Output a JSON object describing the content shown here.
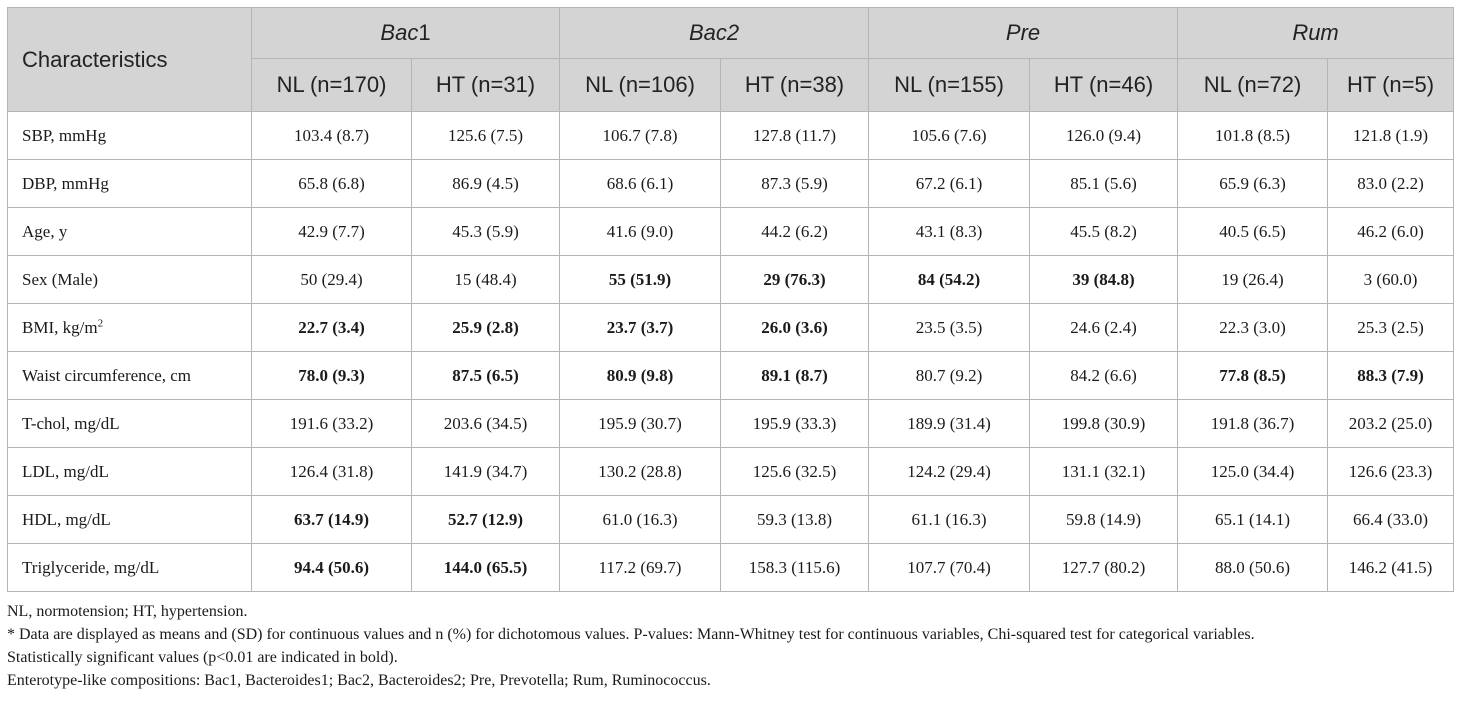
{
  "table": {
    "characteristics_header": "Characteristics",
    "groups": [
      {
        "name": "Bac",
        "suffix": "1"
      },
      {
        "name": "Bac",
        "suffix": "2"
      },
      {
        "name": "Pre",
        "suffix": ""
      },
      {
        "name": "Rum",
        "suffix": ""
      }
    ],
    "subheaders": [
      "NL (n=170)",
      "HT (n=31)",
      "NL (n=106)",
      "HT (n=38)",
      "NL (n=155)",
      "HT (n=46)",
      "NL (n=72)",
      "HT (n=5)"
    ],
    "rows": [
      {
        "label": "SBP, mmHg",
        "label_sup": "",
        "cells": [
          {
            "text": "103.4 (8.7)",
            "bold": false
          },
          {
            "text": "125.6 (7.5)",
            "bold": false
          },
          {
            "text": "106.7 (7.8)",
            "bold": false
          },
          {
            "text": "127.8 (11.7)",
            "bold": false
          },
          {
            "text": "105.6 (7.6)",
            "bold": false
          },
          {
            "text": "126.0 (9.4)",
            "bold": false
          },
          {
            "text": "101.8 (8.5)",
            "bold": false
          },
          {
            "text": "121.8 (1.9)",
            "bold": false
          }
        ]
      },
      {
        "label": "DBP, mmHg",
        "label_sup": "",
        "cells": [
          {
            "text": "65.8 (6.8)",
            "bold": false
          },
          {
            "text": "86.9 (4.5)",
            "bold": false
          },
          {
            "text": "68.6 (6.1)",
            "bold": false
          },
          {
            "text": "87.3 (5.9)",
            "bold": false
          },
          {
            "text": "67.2 (6.1)",
            "bold": false
          },
          {
            "text": "85.1 (5.6)",
            "bold": false
          },
          {
            "text": "65.9 (6.3)",
            "bold": false
          },
          {
            "text": "83.0 (2.2)",
            "bold": false
          }
        ]
      },
      {
        "label": "Age, y",
        "label_sup": "",
        "cells": [
          {
            "text": "42.9 (7.7)",
            "bold": false
          },
          {
            "text": "45.3 (5.9)",
            "bold": false
          },
          {
            "text": "41.6 (9.0)",
            "bold": false
          },
          {
            "text": "44.2 (6.2)",
            "bold": false
          },
          {
            "text": "43.1 (8.3)",
            "bold": false
          },
          {
            "text": "45.5 (8.2)",
            "bold": false
          },
          {
            "text": "40.5 (6.5)",
            "bold": false
          },
          {
            "text": "46.2 (6.0)",
            "bold": false
          }
        ]
      },
      {
        "label": "Sex (Male)",
        "label_sup": "",
        "cells": [
          {
            "text": "50 (29.4)",
            "bold": false
          },
          {
            "text": "15 (48.4)",
            "bold": false
          },
          {
            "text": "55 (51.9)",
            "bold": true
          },
          {
            "text": "29 (76.3)",
            "bold": true
          },
          {
            "text": "84 (54.2)",
            "bold": true
          },
          {
            "text": "39 (84.8)",
            "bold": true
          },
          {
            "text": "19 (26.4)",
            "bold": false
          },
          {
            "text": "3 (60.0)",
            "bold": false
          }
        ]
      },
      {
        "label": "BMI, kg/m",
        "label_sup": "2",
        "cells": [
          {
            "text": "22.7 (3.4)",
            "bold": true
          },
          {
            "text": "25.9 (2.8)",
            "bold": true
          },
          {
            "text": "23.7 (3.7)",
            "bold": true
          },
          {
            "text": "26.0 (3.6)",
            "bold": true
          },
          {
            "text": "23.5 (3.5)",
            "bold": false
          },
          {
            "text": "24.6 (2.4)",
            "bold": false
          },
          {
            "text": "22.3 (3.0)",
            "bold": false
          },
          {
            "text": "25.3 (2.5)",
            "bold": false
          }
        ]
      },
      {
        "label": "Waist circumference, cm",
        "label_sup": "",
        "cells": [
          {
            "text": "78.0 (9.3)",
            "bold": true
          },
          {
            "text": "87.5 (6.5)",
            "bold": true
          },
          {
            "text": "80.9 (9.8)",
            "bold": true
          },
          {
            "text": "89.1 (8.7)",
            "bold": true
          },
          {
            "text": "80.7 (9.2)",
            "bold": false
          },
          {
            "text": "84.2 (6.6)",
            "bold": false
          },
          {
            "text": "77.8 (8.5)",
            "bold": true
          },
          {
            "text": "88.3 (7.9)",
            "bold": true
          }
        ]
      },
      {
        "label": "T-chol, mg/dL",
        "label_sup": "",
        "cells": [
          {
            "text": "191.6 (33.2)",
            "bold": false
          },
          {
            "text": "203.6 (34.5)",
            "bold": false
          },
          {
            "text": "195.9 (30.7)",
            "bold": false
          },
          {
            "text": "195.9 (33.3)",
            "bold": false
          },
          {
            "text": "189.9 (31.4)",
            "bold": false
          },
          {
            "text": "199.8 (30.9)",
            "bold": false
          },
          {
            "text": "191.8 (36.7)",
            "bold": false
          },
          {
            "text": "203.2 (25.0)",
            "bold": false
          }
        ]
      },
      {
        "label": "LDL, mg/dL",
        "label_sup": "",
        "cells": [
          {
            "text": "126.4 (31.8)",
            "bold": false
          },
          {
            "text": "141.9 (34.7)",
            "bold": false
          },
          {
            "text": "130.2 (28.8)",
            "bold": false
          },
          {
            "text": "125.6 (32.5)",
            "bold": false
          },
          {
            "text": "124.2 (29.4)",
            "bold": false
          },
          {
            "text": "131.1 (32.1)",
            "bold": false
          },
          {
            "text": "125.0 (34.4)",
            "bold": false
          },
          {
            "text": "126.6 (23.3)",
            "bold": false
          }
        ]
      },
      {
        "label": "HDL, mg/dL",
        "label_sup": "",
        "cells": [
          {
            "text": "63.7 (14.9)",
            "bold": true
          },
          {
            "text": "52.7 (12.9)",
            "bold": true
          },
          {
            "text": "61.0 (16.3)",
            "bold": false
          },
          {
            "text": "59.3 (13.8)",
            "bold": false
          },
          {
            "text": "61.1 (16.3)",
            "bold": false
          },
          {
            "text": "59.8 (14.9)",
            "bold": false
          },
          {
            "text": "65.1 (14.1)",
            "bold": false
          },
          {
            "text": "66.4 (33.0)",
            "bold": false
          }
        ]
      },
      {
        "label": "Triglyceride, mg/dL",
        "label_sup": "",
        "cells": [
          {
            "text": "94.4 (50.6)",
            "bold": true
          },
          {
            "text": "144.0 (65.5)",
            "bold": true
          },
          {
            "text": "117.2 (69.7)",
            "bold": false
          },
          {
            "text": "158.3 (115.6)",
            "bold": false
          },
          {
            "text": "107.7 (70.4)",
            "bold": false
          },
          {
            "text": "127.7 (80.2)",
            "bold": false
          },
          {
            "text": "88.0 (50.6)",
            "bold": false
          },
          {
            "text": "146.2 (41.5)",
            "bold": false
          }
        ]
      }
    ]
  },
  "footnotes": {
    "abbrev": "NL, normotension; HT, hypertension.",
    "data_note": "* Data are displayed as means and (SD) for continuous values and n (%) for dichotomous values. P-values: Mann-Whitney test for continuous variables, Chi-squared test for categorical variables.",
    "significance": "Statistically significant values (p<0.01 are indicated in bold).",
    "enterotypes": "Enterotype-like compositions: Bac1, Bacteroides1; Bac2, Bacteroides2; Pre, Prevotella; Rum, Ruminococcus."
  },
  "colors": {
    "header_bg": "#d4d4d4",
    "border": "#b5b5b5",
    "text": "#1a1a1a"
  }
}
